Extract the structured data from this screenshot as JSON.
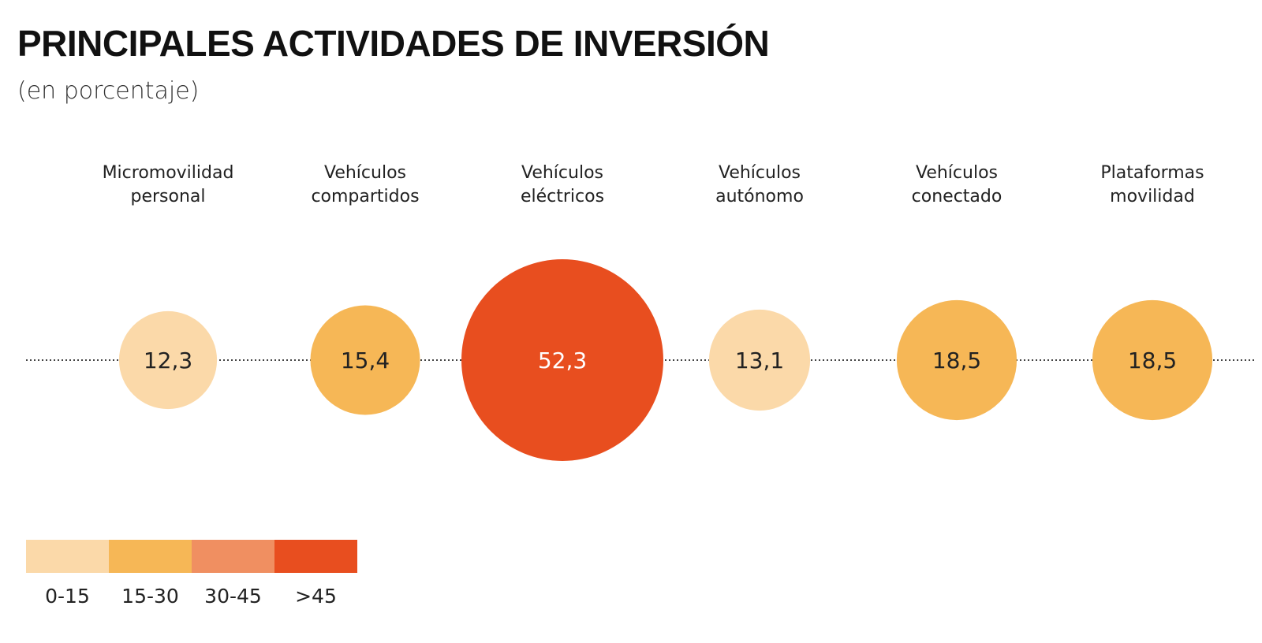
{
  "header": {
    "title": "PRINCIPALES ACTIVIDADES DE INVERSIÓN",
    "subtitle": "(en porcentaje)"
  },
  "chart_data": {
    "type": "bubble",
    "title": "PRINCIPALES ACTIVIDADES DE INVERSIÓN",
    "subtitle": "(en porcentaje)",
    "unit": "%",
    "items": [
      {
        "label_lines": [
          "Micromovilidad",
          "personal"
        ],
        "value": 12.3,
        "value_label": "12,3",
        "bin": "0-15"
      },
      {
        "label_lines": [
          "Vehículos",
          "compartidos"
        ],
        "value": 15.4,
        "value_label": "15,4",
        "bin": "15-30"
      },
      {
        "label_lines": [
          "Vehículos",
          "eléctricos"
        ],
        "value": 52.3,
        "value_label": "52,3",
        "bin": ">45"
      },
      {
        "label_lines": [
          "Vehículos",
          "autónomo"
        ],
        "value": 13.1,
        "value_label": "13,1",
        "bin": "0-15"
      },
      {
        "label_lines": [
          "Vehículos",
          "conectado"
        ],
        "value": 18.5,
        "value_label": "18,5",
        "bin": "15-30"
      },
      {
        "label_lines": [
          "Plataformas",
          "movilidad"
        ],
        "value": 18.5,
        "value_label": "18,5",
        "bin": "15-30"
      }
    ],
    "legend": [
      {
        "label": "0-15",
        "color": "#fbd9a9"
      },
      {
        "label": "15-30",
        "color": "#f6b756"
      },
      {
        "label": "30-45",
        "color": "#f08f61"
      },
      {
        "label": ">45",
        "color": "#e84e1f"
      }
    ],
    "value_text_colors": {
      "light": "#ffffff",
      "dark": "#222222"
    }
  }
}
